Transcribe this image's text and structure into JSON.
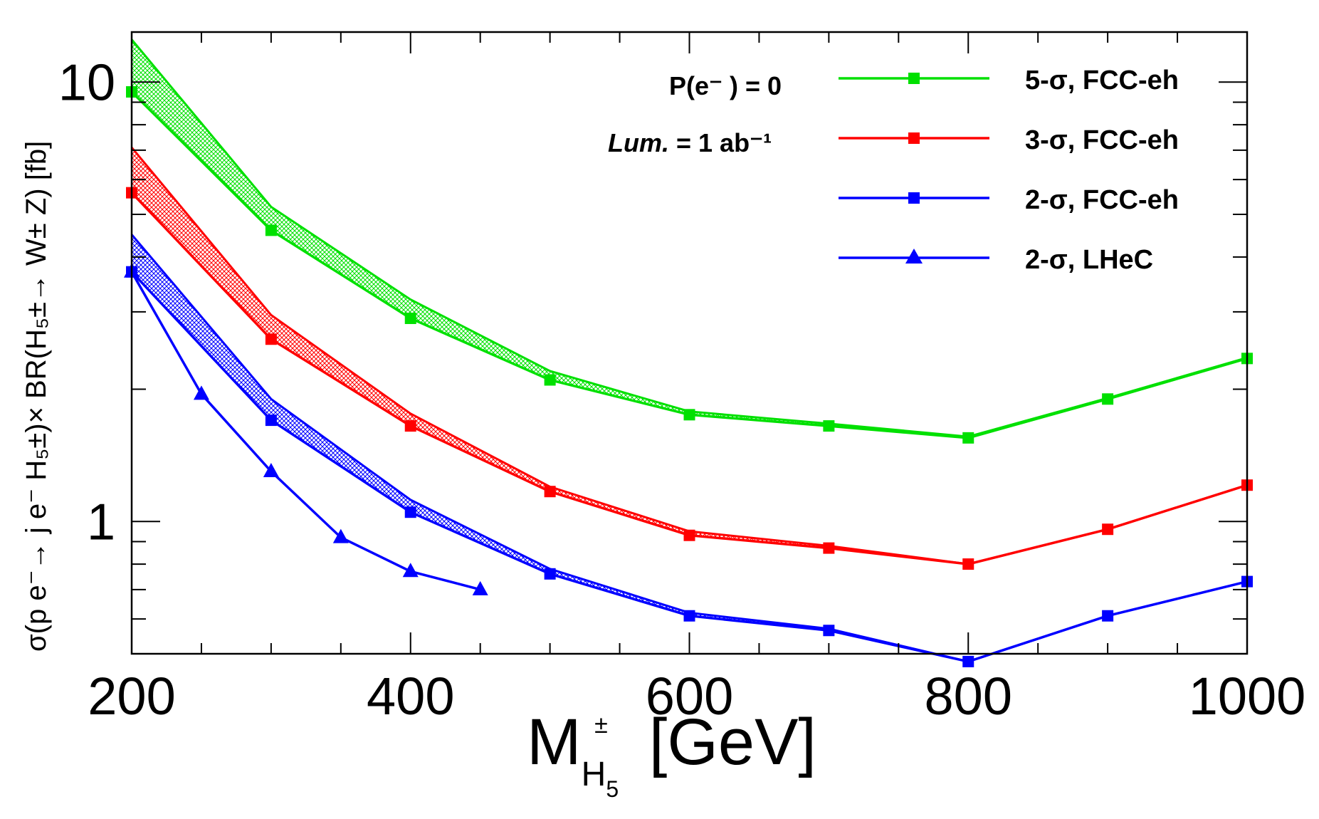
{
  "chart_data": {
    "type": "line",
    "xlabel": "M",
    "xlabel_sub": "H",
    "xlabel_subsub": "5",
    "xlabel_sup": "±",
    "xlabel_unit": "[GeV]",
    "ylabel": "σ(p e⁻→ j e⁻ H₅±)× BR(H₅±→ W± Z)  [fb]",
    "yscale": "log",
    "xlim": [
      200,
      1000
    ],
    "ylim": [
      0.5,
      13
    ],
    "x_ticks": [
      "200",
      "400",
      "600",
      "800",
      "1000"
    ],
    "y_ticks": [
      "1",
      "10"
    ],
    "annotations": {
      "polarization": "P(e⁻ ) = 0",
      "lum_italic": "Lum.",
      "lum_value": " = 1 ab⁻¹"
    },
    "series": [
      {
        "name": "5-σ, FCC-eh",
        "color": "#00e000",
        "marker": "square",
        "x": [
          200,
          300,
          400,
          500,
          600,
          700,
          800,
          900,
          1000
        ],
        "values": [
          9.5,
          4.6,
          2.9,
          2.1,
          1.75,
          1.65,
          1.55,
          1.9,
          2.35
        ],
        "band_upper": [
          12.5,
          5.2,
          3.2,
          2.2,
          1.78,
          1.67,
          1.56,
          1.91,
          2.36
        ]
      },
      {
        "name": "3-σ, FCC-eh",
        "color": "#ff0000",
        "marker": "square",
        "x": [
          200,
          300,
          400,
          500,
          600,
          700,
          800,
          900,
          1000
        ],
        "values": [
          5.6,
          2.6,
          1.65,
          1.17,
          0.93,
          0.87,
          0.8,
          0.96,
          1.21
        ],
        "band_upper": [
          7.1,
          2.95,
          1.76,
          1.2,
          0.95,
          0.88,
          0.8,
          0.96,
          1.21
        ]
      },
      {
        "name": "2-σ, FCC-eh",
        "color": "#0000ff",
        "marker": "square",
        "x": [
          200,
          300,
          400,
          500,
          600,
          700,
          800,
          900,
          1000
        ],
        "values": [
          3.7,
          1.7,
          1.05,
          0.76,
          0.61,
          0.565,
          0.48,
          0.61,
          0.73
        ],
        "band_upper": [
          4.5,
          1.9,
          1.12,
          0.78,
          0.62,
          0.57,
          0.48,
          0.61,
          0.73
        ]
      },
      {
        "name": "2-σ, LHeC",
        "color": "#0000ff",
        "marker": "triangle",
        "x": [
          200,
          250,
          300,
          350,
          400,
          450
        ],
        "values": [
          3.7,
          1.95,
          1.3,
          0.92,
          0.77,
          0.7
        ]
      }
    ]
  }
}
